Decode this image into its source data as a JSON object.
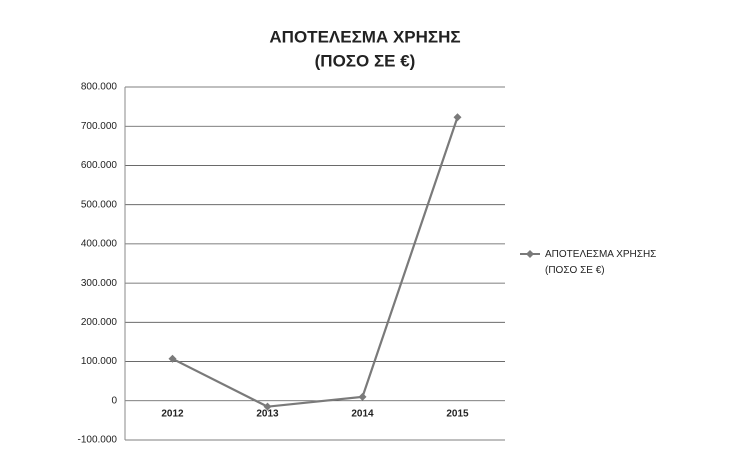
{
  "chart_data": {
    "type": "line",
    "title": "ΑΠΟΤΕΛΕΣΜΑ ΧΡΗΣΗΣ",
    "subtitle": "(ΠΟΣΟ ΣΕ €)",
    "categories": [
      "2012",
      "2013",
      "2014",
      "2015"
    ],
    "series": [
      {
        "name": "ΑΠΟΤΕΛΕΣΜΑ ΧΡΗΣΗΣ (ΠΟΣΟ ΣΕ €)",
        "color": "#7a7a7a",
        "values": [
          107000,
          -15000,
          10000,
          723000
        ]
      }
    ],
    "ylim": [
      -100000,
      800000
    ],
    "yticks": [
      {
        "value": -100000,
        "label": "-100.000"
      },
      0,
      {
        "value": 100000,
        "label": "100.000"
      },
      {
        "value": 200000,
        "label": "200.000"
      },
      {
        "value": 300000,
        "label": "300.000"
      },
      {
        "value": 400000,
        "label": "400.000"
      },
      {
        "value": 500000,
        "label": "500.000"
      },
      {
        "value": 600000,
        "label": "600.000"
      },
      {
        "value": 700000,
        "label": "700.000"
      },
      {
        "value": 800000,
        "label": "800.000"
      }
    ],
    "grid": true,
    "legend": "right"
  }
}
